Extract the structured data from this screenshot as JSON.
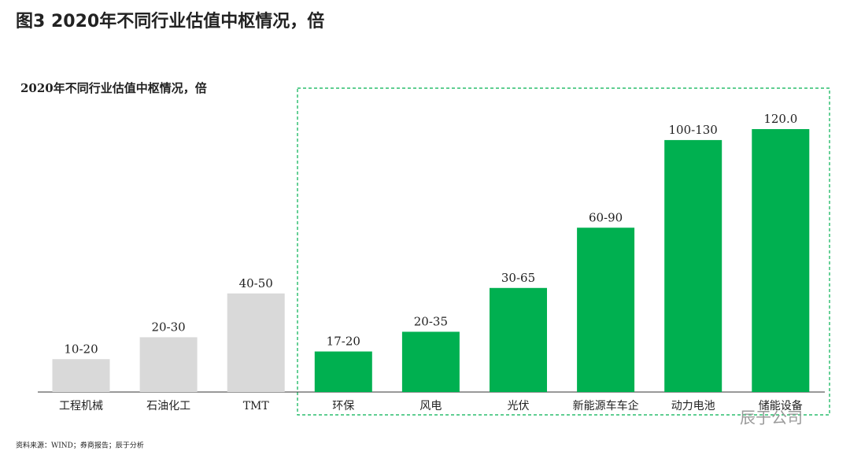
{
  "chart_data": {
    "type": "bar",
    "title": "图3   2020年不同行业估值中枢情况，倍",
    "subtitle": "2020年不同行业估值中枢情况，倍",
    "categories": [
      "工程机械",
      "石油化工",
      "TMT",
      "环保",
      "风电",
      "光伏",
      "新能源车车企",
      "动力电池",
      "储能设备"
    ],
    "values": [
      15,
      25,
      45,
      18.5,
      27.5,
      47.5,
      75,
      115,
      120
    ],
    "value_labels": [
      "10-20",
      "20-30",
      "40-50",
      "17-20",
      "20-35",
      "30-65",
      "60-90",
      "100-130",
      "120.0"
    ],
    "colors": [
      "#d9d9d9",
      "#d9d9d9",
      "#d9d9d9",
      "#00b050",
      "#00b050",
      "#00b050",
      "#00b050",
      "#00b050",
      "#00b050"
    ],
    "source": "资料来源：WIND；券商报告；辰于分析",
    "watermark": "辰于公司"
  }
}
